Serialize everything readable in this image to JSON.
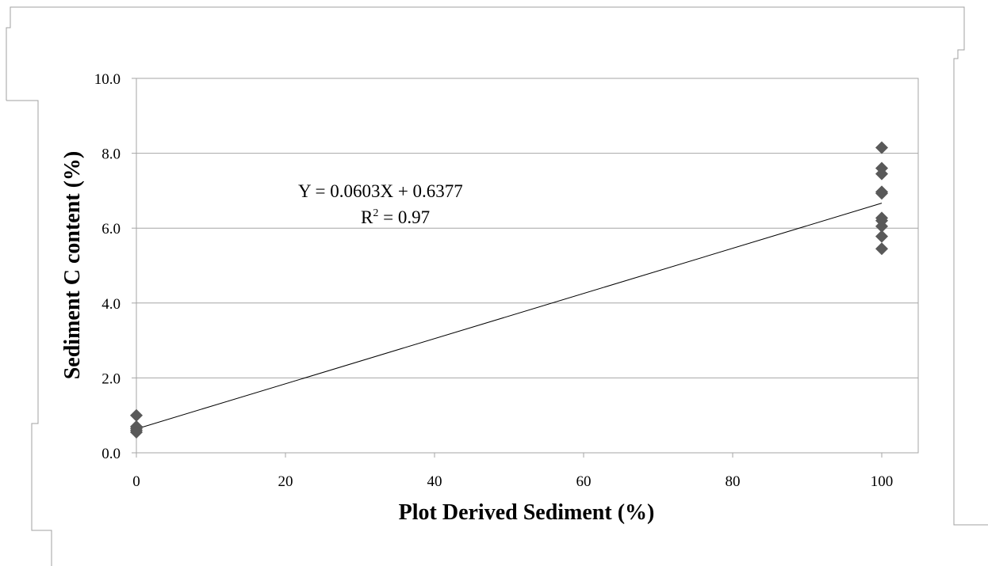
{
  "chart_data": {
    "type": "scatter",
    "xlabel": "Plot Derived Sediment (%)",
    "ylabel": "Sediment C content (%)",
    "xlim": [
      0,
      105
    ],
    "ylim": [
      0,
      10
    ],
    "xticks": [
      0,
      20,
      40,
      60,
      80,
      100
    ],
    "xtick_labels": [
      "0",
      "20",
      "40",
      "60",
      "80",
      "100"
    ],
    "yticks": [
      0,
      2,
      4,
      6,
      8,
      10
    ],
    "ytick_labels": [
      "0.0",
      "2.0",
      "4.0",
      "6.0",
      "8.0",
      "10.0"
    ],
    "grid": {
      "horizontal": true,
      "vertical": false
    },
    "legend": "none",
    "marker": "diamond",
    "marker_color": "#595959",
    "trendline_color": "#000000",
    "points": [
      {
        "x": 0,
        "y": 1.0
      },
      {
        "x": 0,
        "y": 0.7
      },
      {
        "x": 0,
        "y": 0.65
      },
      {
        "x": 0,
        "y": 0.6
      },
      {
        "x": 0,
        "y": 0.55
      },
      {
        "x": 100,
        "y": 8.15
      },
      {
        "x": 100,
        "y": 7.6
      },
      {
        "x": 100,
        "y": 7.45
      },
      {
        "x": 100,
        "y": 6.97
      },
      {
        "x": 100,
        "y": 6.93
      },
      {
        "x": 100,
        "y": 6.27
      },
      {
        "x": 100,
        "y": 6.2
      },
      {
        "x": 100,
        "y": 6.05
      },
      {
        "x": 100,
        "y": 5.78
      },
      {
        "x": 100,
        "y": 5.45
      }
    ],
    "trendline": {
      "slope": 0.0603,
      "intercept": 0.6377,
      "x_range": [
        0,
        100
      ]
    },
    "annotations": {
      "equation": "Y = 0.0603X + 0.6377",
      "r_squared_prefix": "R",
      "r_squared_sup": "2",
      "r_squared_suffix": " = 0.97"
    }
  }
}
